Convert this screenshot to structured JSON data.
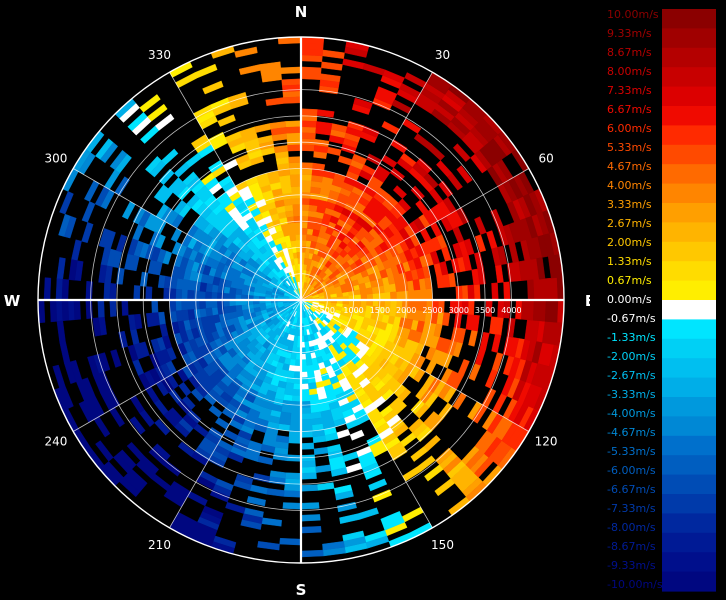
{
  "chart_data": {
    "type": "heatmap",
    "projection": "polar",
    "title": "",
    "cardinals": [
      "N",
      "E",
      "S",
      "W"
    ],
    "azimuth_labels": [
      "30",
      "60",
      "120",
      "150",
      "210",
      "240",
      "300",
      "330"
    ],
    "azimuth_label_angles": [
      30,
      60,
      120,
      150,
      210,
      240,
      300,
      330
    ],
    "range_labels": [
      "500",
      "1000",
      "1500",
      "2000",
      "2500",
      "3000",
      "3500",
      "4000"
    ],
    "range_values": [
      500,
      1000,
      1500,
      2000,
      2500,
      3000,
      3500,
      4000
    ],
    "range_max": 5000,
    "colorbar": {
      "unit": "m/s",
      "min": -10.0,
      "max": 10.0,
      "labels": [
        "10.00m/s",
        "9.33m/s",
        "8.67m/s",
        "8.00m/s",
        "7.33m/s",
        "6.67m/s",
        "6.00m/s",
        "5.33m/s",
        "4.67m/s",
        "4.00m/s",
        "3.33m/s",
        "2.67m/s",
        "2.00m/s",
        "1.33m/s",
        "0.67m/s",
        "0.00m/s",
        "-0.67m/s",
        "-1.33m/s",
        "-2.00m/s",
        "-2.67m/s",
        "-3.33m/s",
        "-4.00m/s",
        "-4.67m/s",
        "-5.33m/s",
        "-6.00m/s",
        "-6.67m/s",
        "-7.33m/s",
        "-8.00m/s",
        "-8.67m/s",
        "-9.33m/s",
        "-10.00m/s"
      ],
      "colors": [
        "#8b0000",
        "#a00000",
        "#b40000",
        "#c80000",
        "#dc0000",
        "#f00a00",
        "#ff2a00",
        "#ff4a00",
        "#ff6a00",
        "#ff8500",
        "#ff9f00",
        "#ffb400",
        "#ffc800",
        "#ffdc00",
        "#ffee00",
        "#ffffff",
        "#00e5ff",
        "#00d0f5",
        "#00bff0",
        "#00aee8",
        "#0099dd",
        "#0088d5",
        "#0070cc",
        "#005ec0",
        "#004cb5",
        "#003aaa",
        "#00289f",
        "#001a95",
        "#000f8c",
        "#000780"
      ]
    },
    "velocity_pattern": {
      "inbound_center_azimuth": 240,
      "outbound_center_azimuth": 60,
      "zero_line": "N-S curving",
      "inner_inbound_fill": "#2aa0dc",
      "inner_outbound_fill": "#e8551e"
    }
  }
}
